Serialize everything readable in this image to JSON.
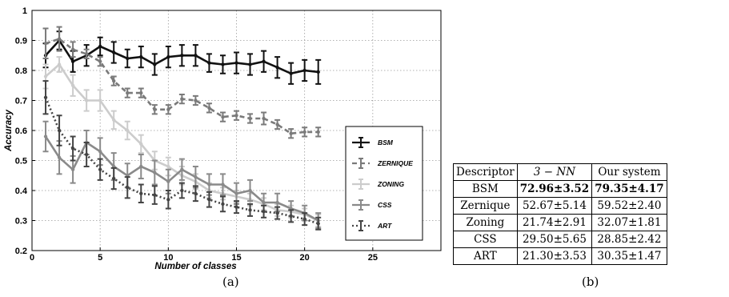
{
  "chart_data": {
    "type": "line",
    "xlabel": "Number of classes",
    "ylabel": "Accuracy",
    "xlim": [
      0,
      30
    ],
    "ylim": [
      0.2,
      1.0
    ],
    "xticks": [
      "0",
      "5",
      "10",
      "15",
      "20",
      "25"
    ],
    "yticks": [
      "0.2",
      "0.3",
      "0.4",
      "0.5",
      "0.6",
      "0.7",
      "0.8",
      "0.9",
      "1"
    ],
    "grid": true,
    "legend_position": "right",
    "x": [
      1,
      2,
      3,
      4,
      5,
      6,
      7,
      8,
      9,
      10,
      11,
      12,
      13,
      14,
      15,
      16,
      17,
      18,
      19,
      20,
      21
    ],
    "series": [
      {
        "name": "BSM",
        "color": "#111111",
        "dash": "solid",
        "marker": "plus",
        "values": [
          0.85,
          0.9,
          0.83,
          0.85,
          0.88,
          0.86,
          0.84,
          0.845,
          0.82,
          0.845,
          0.85,
          0.85,
          0.825,
          0.82,
          0.825,
          0.82,
          0.83,
          0.81,
          0.79,
          0.8,
          0.795
        ],
        "errors": [
          0.04,
          0.03,
          0.035,
          0.035,
          0.03,
          0.035,
          0.03,
          0.035,
          0.035,
          0.035,
          0.035,
          0.035,
          0.03,
          0.03,
          0.035,
          0.035,
          0.035,
          0.035,
          0.035,
          0.035,
          0.04
        ]
      },
      {
        "name": "ZERNIQUE",
        "color": "#7a7a7a",
        "dash": "dashed",
        "marker": "plus",
        "values": [
          0.89,
          0.905,
          0.87,
          0.855,
          0.83,
          0.765,
          0.725,
          0.725,
          0.67,
          0.67,
          0.705,
          0.7,
          0.675,
          0.645,
          0.65,
          0.64,
          0.64,
          0.62,
          0.59,
          0.595,
          0.595
        ],
        "errors": [
          0.05,
          0.04,
          0.025,
          0.015,
          0.015,
          0.015,
          0.015,
          0.015,
          0.015,
          0.015,
          0.015,
          0.015,
          0.015,
          0.015,
          0.015,
          0.015,
          0.02,
          0.015,
          0.015,
          0.015,
          0.015
        ]
      },
      {
        "name": "ZONING",
        "color": "#cccccc",
        "dash": "solid",
        "marker": "plus",
        "values": [
          0.78,
          0.82,
          0.75,
          0.7,
          0.7,
          0.635,
          0.6,
          0.555,
          0.5,
          0.48,
          0.45,
          0.43,
          0.4,
          0.39,
          0.38,
          0.37,
          0.355,
          0.335,
          0.33,
          0.32,
          0.3
        ],
        "errors": [
          0.04,
          0.025,
          0.035,
          0.035,
          0.035,
          0.03,
          0.03,
          0.03,
          0.03,
          0.03,
          0.03,
          0.025,
          0.025,
          0.02,
          0.02,
          0.02,
          0.02,
          0.02,
          0.02,
          0.02,
          0.02
        ]
      },
      {
        "name": "CSS",
        "color": "#8a8a8a",
        "dash": "solid",
        "marker": "plus",
        "values": [
          0.58,
          0.51,
          0.47,
          0.56,
          0.53,
          0.48,
          0.45,
          0.48,
          0.46,
          0.43,
          0.47,
          0.445,
          0.42,
          0.42,
          0.39,
          0.4,
          0.36,
          0.36,
          0.34,
          0.325,
          0.3
        ],
        "errors": [
          0.05,
          0.055,
          0.045,
          0.04,
          0.045,
          0.045,
          0.04,
          0.04,
          0.04,
          0.04,
          0.035,
          0.035,
          0.035,
          0.035,
          0.035,
          0.035,
          0.03,
          0.03,
          0.025,
          0.025,
          0.025
        ]
      },
      {
        "name": "ART",
        "color": "#444444",
        "dash": "dotted",
        "marker": "plus",
        "values": [
          0.71,
          0.6,
          0.54,
          0.52,
          0.47,
          0.44,
          0.41,
          0.39,
          0.385,
          0.37,
          0.4,
          0.39,
          0.37,
          0.355,
          0.345,
          0.335,
          0.33,
          0.325,
          0.315,
          0.305,
          0.29
        ],
        "errors": [
          0.055,
          0.05,
          0.04,
          0.04,
          0.035,
          0.035,
          0.035,
          0.03,
          0.03,
          0.03,
          0.025,
          0.025,
          0.025,
          0.025,
          0.02,
          0.02,
          0.02,
          0.02,
          0.02,
          0.02,
          0.02
        ]
      }
    ]
  },
  "captions": {
    "a": "(a)",
    "b": "(b)"
  },
  "table": {
    "headers": [
      "Descriptor",
      "3 − NN",
      "Our system"
    ],
    "rows": [
      {
        "name": "BSM",
        "knn": "72.96±3.52",
        "ours": "79.35±4.17",
        "bold": true
      },
      {
        "name": "Zernique",
        "knn": "52.67±5.14",
        "ours": "59.52±2.40",
        "bold": false
      },
      {
        "name": "Zoning",
        "knn": "21.74±2.91",
        "ours": "32.07±1.81",
        "bold": false
      },
      {
        "name": "CSS",
        "knn": "29.50±5.65",
        "ours": "28.85±2.42",
        "bold": false
      },
      {
        "name": "ART",
        "knn": "21.30±3.53",
        "ours": "30.35±1.47",
        "bold": false
      }
    ]
  }
}
